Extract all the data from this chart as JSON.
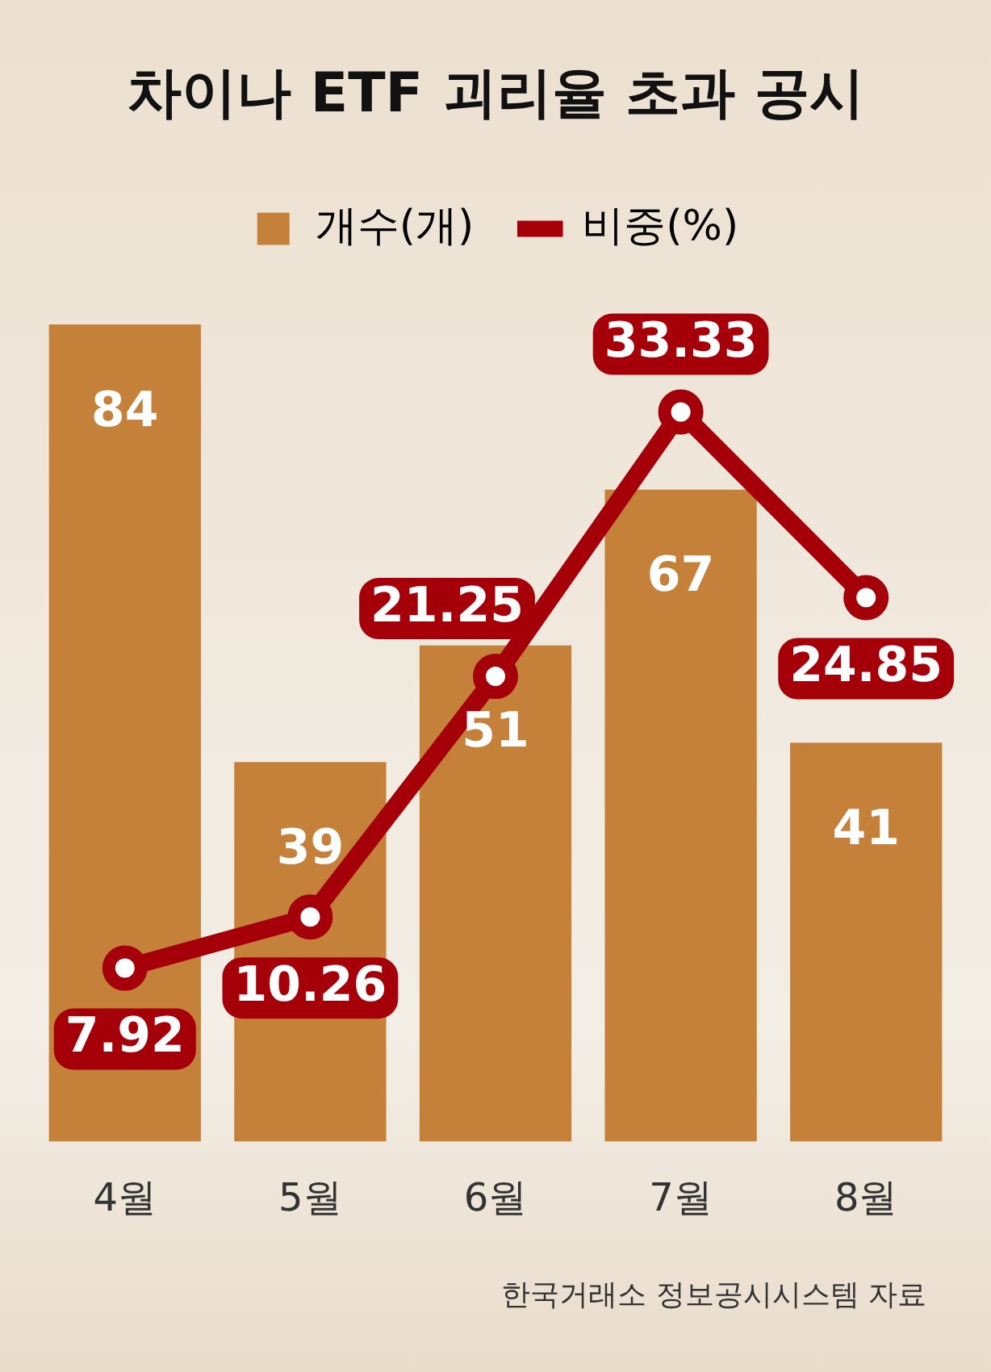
{
  "chart_data": {
    "type": "bar",
    "title": "차이나 ETF 괴리율 초과 공시",
    "categories": [
      "4월",
      "5월",
      "6월",
      "7월",
      "8월"
    ],
    "series": [
      {
        "name": "개수(개)",
        "color": "#c5813a",
        "values": [
          84,
          39,
          51,
          67,
          41
        ]
      },
      {
        "name": "비중(%)",
        "type": "line",
        "axis": "y2",
        "color": "#a50009",
        "values": [
          7.92,
          10.26,
          21.25,
          33.33,
          24.85
        ]
      }
    ],
    "data_labels": true,
    "legend": "top",
    "marker": "circle",
    "line_style": "solid",
    "tick_labels": "x",
    "annotations": [
      "한국거래소 정보공시시스템 자료"
    ]
  }
}
